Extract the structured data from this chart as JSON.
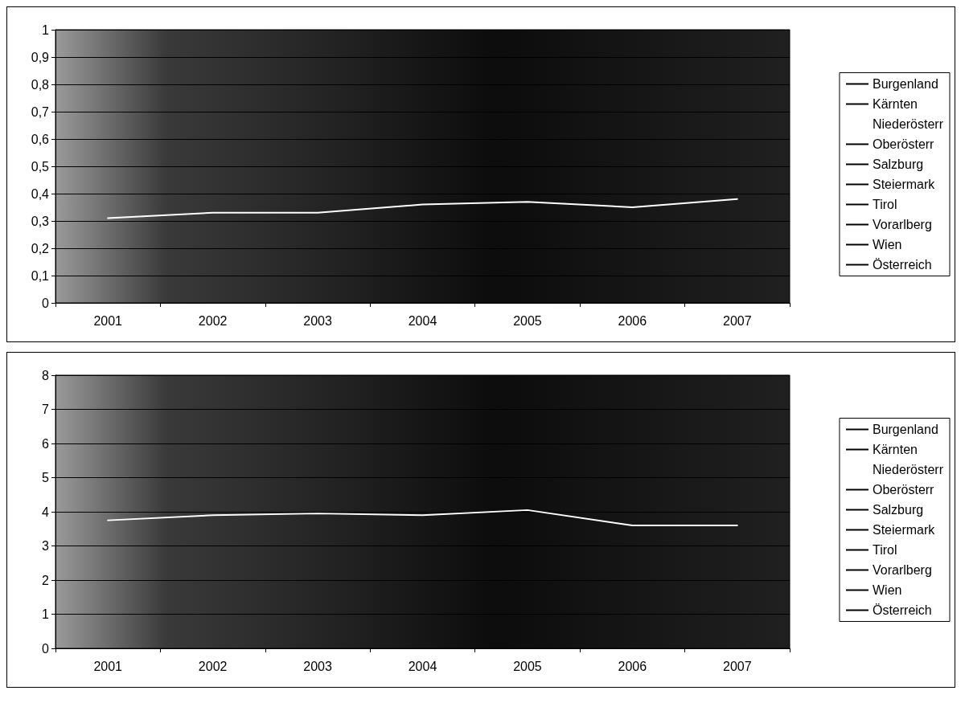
{
  "chart_data": [
    {
      "type": "line",
      "categories": [
        "2001",
        "2002",
        "2003",
        "2004",
        "2005",
        "2006",
        "2007"
      ],
      "ylim": [
        0,
        1
      ],
      "yticks": [
        0,
        {
          "value": 0.1,
          "label": "0,1"
        },
        {
          "value": 0.2,
          "label": "0,2"
        },
        {
          "value": 0.3,
          "label": "0,3"
        },
        {
          "value": 0.4,
          "label": "0,4"
        },
        {
          "value": 0.5,
          "label": "0,5"
        },
        {
          "value": 0.6,
          "label": "0,6"
        },
        {
          "value": 0.7,
          "label": "0,7"
        },
        {
          "value": 0.8,
          "label": "0,8"
        },
        {
          "value": 0.9,
          "label": "0,9"
        },
        1
      ],
      "grid": "y",
      "legend": "right",
      "marker": "none",
      "line_style": "solid",
      "series": [
        {
          "name": "Burgenland",
          "color": "#000000",
          "values": [
            null,
            null,
            null,
            null,
            null,
            null,
            null
          ]
        },
        {
          "name": "Kärnten",
          "color": "#000000",
          "values": [
            null,
            null,
            null,
            null,
            null,
            null,
            null
          ]
        },
        {
          "name": "Niederösterr",
          "color": "#ffffff",
          "values": [
            0.31,
            0.33,
            0.33,
            0.36,
            0.37,
            0.35,
            0.38
          ]
        },
        {
          "name": "Oberösterr",
          "color": "#000000",
          "values": [
            null,
            null,
            null,
            null,
            null,
            null,
            null
          ]
        },
        {
          "name": "Salzburg",
          "color": "#000000",
          "values": [
            null,
            null,
            null,
            null,
            null,
            null,
            null
          ]
        },
        {
          "name": "Steiermark",
          "color": "#000000",
          "values": [
            null,
            null,
            null,
            null,
            null,
            null,
            null
          ]
        },
        {
          "name": "Tirol",
          "color": "#000000",
          "values": [
            null,
            null,
            null,
            null,
            null,
            null,
            null
          ]
        },
        {
          "name": "Vorarlberg",
          "color": "#000000",
          "values": [
            null,
            null,
            null,
            null,
            null,
            null,
            null
          ]
        },
        {
          "name": "Wien",
          "color": "#000000",
          "values": [
            null,
            null,
            null,
            null,
            null,
            null,
            null
          ]
        },
        {
          "name": "Österreich",
          "color": "#000000",
          "values": [
            null,
            null,
            null,
            null,
            null,
            null,
            null
          ]
        }
      ]
    },
    {
      "type": "line",
      "categories": [
        "2001",
        "2002",
        "2003",
        "2004",
        "2005",
        "2006",
        "2007"
      ],
      "ylim": [
        0,
        8
      ],
      "yticks": [
        0,
        1,
        2,
        3,
        4,
        5,
        6,
        7,
        8
      ],
      "grid": "y",
      "legend": "right",
      "marker": "none",
      "line_style": "solid",
      "series": [
        {
          "name": "Burgenland",
          "color": "#000000",
          "values": [
            null,
            null,
            null,
            null,
            null,
            null,
            null
          ]
        },
        {
          "name": "Kärnten",
          "color": "#000000",
          "values": [
            null,
            null,
            null,
            null,
            null,
            null,
            null
          ]
        },
        {
          "name": "Niederösterr",
          "color": "#ffffff",
          "values": [
            3.75,
            3.9,
            3.95,
            3.9,
            4.05,
            3.6,
            3.6
          ]
        },
        {
          "name": "Oberösterr",
          "color": "#000000",
          "values": [
            null,
            null,
            null,
            null,
            null,
            null,
            null
          ]
        },
        {
          "name": "Salzburg",
          "color": "#000000",
          "values": [
            null,
            null,
            null,
            null,
            null,
            null,
            null
          ]
        },
        {
          "name": "Steiermark",
          "color": "#000000",
          "values": [
            null,
            null,
            null,
            null,
            null,
            null,
            null
          ]
        },
        {
          "name": "Tirol",
          "color": "#000000",
          "values": [
            null,
            null,
            null,
            null,
            null,
            null,
            null
          ]
        },
        {
          "name": "Vorarlberg",
          "color": "#000000",
          "values": [
            null,
            null,
            null,
            null,
            null,
            null,
            null
          ]
        },
        {
          "name": "Wien",
          "color": "#000000",
          "values": [
            null,
            null,
            null,
            null,
            null,
            null,
            null
          ]
        },
        {
          "name": "Österreich",
          "color": "#000000",
          "values": [
            null,
            null,
            null,
            null,
            null,
            null,
            null
          ]
        }
      ]
    }
  ]
}
